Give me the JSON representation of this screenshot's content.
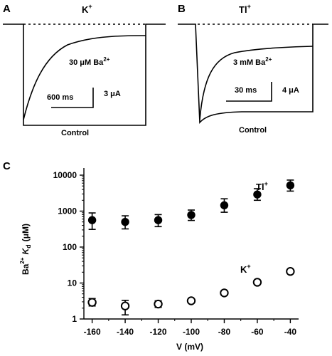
{
  "panel_a": {
    "letter": "A",
    "ion": "K",
    "ion_sup": "+",
    "trace_label": "30 μM Ba",
    "trace_label_sup": "2+",
    "time_scale": "600 ms",
    "current_scale": "3 μA",
    "control_label": "Control"
  },
  "panel_b": {
    "letter": "B",
    "ion": "Tl",
    "ion_sup": "+",
    "trace_label": "3 mM Ba",
    "trace_label_sup": "2+",
    "time_scale": "30 ms",
    "current_scale": "4 μA",
    "control_label": "Control"
  },
  "chart_data": {
    "type": "scatter",
    "panel_letter": "C",
    "xlabel": "V (mV)",
    "ylabel": "Ba  K  (μM)",
    "ylabel_parts": {
      "base": "Ba",
      "sup": "2+",
      "k": "K",
      "sub": "d",
      "unit": "(μM)"
    },
    "x_ticks": [
      -160,
      -140,
      -120,
      -100,
      -80,
      -60,
      -40
    ],
    "y_ticks": [
      1,
      10,
      100,
      1000,
      10000
    ],
    "y_scale": "log",
    "xlim": [
      -165,
      -35
    ],
    "ylim": [
      1,
      10000
    ],
    "series": [
      {
        "name": "Tl",
        "name_sup": "+",
        "marker": "filled-circle",
        "x": [
          -160,
          -140,
          -120,
          -100,
          -80,
          -60,
          -40
        ],
        "y": [
          560,
          500,
          560,
          780,
          1450,
          2900,
          5200
        ],
        "err_up": [
          330,
          240,
          240,
          290,
          750,
          1300,
          2100
        ],
        "err_down": [
          250,
          180,
          190,
          230,
          520,
          900,
          1600
        ]
      },
      {
        "name": "K",
        "name_sup": "+",
        "marker": "open-circle",
        "x": [
          -160,
          -140,
          -120,
          -100,
          -80,
          -60,
          -40
        ],
        "y": [
          2.9,
          2.3,
          2.6,
          3.2,
          5.3,
          10.5,
          21
        ],
        "err_up": [
          0.8,
          1.0,
          0.6,
          0.4,
          0.4,
          0.6,
          1.2
        ],
        "err_down": [
          0.6,
          1.0,
          0.5,
          0.3,
          0.3,
          0.5,
          1.0
        ]
      }
    ]
  }
}
